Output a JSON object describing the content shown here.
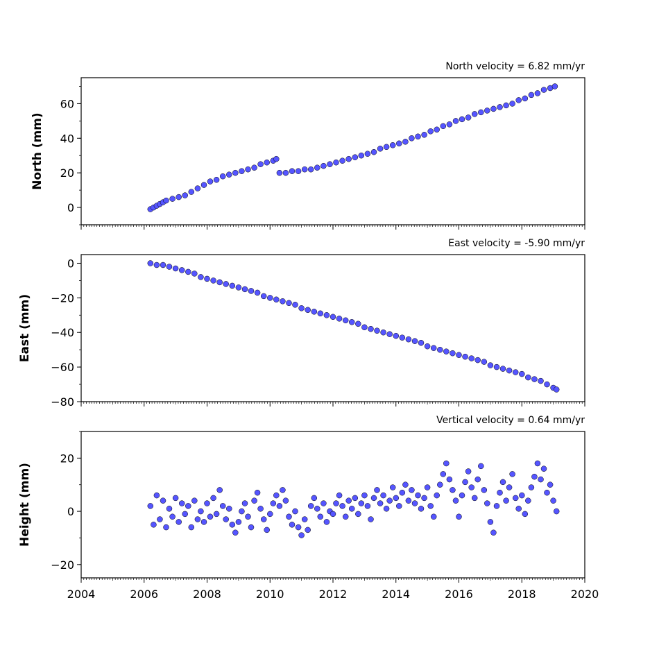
{
  "chart_data": [
    {
      "type": "scatter",
      "panel": "north",
      "title": "North velocity = 6.82 mm/yr",
      "xlabel": "",
      "ylabel": "North (mm)",
      "xlim": [
        2004,
        2020
      ],
      "ylim": [
        -10,
        75
      ],
      "yticks": [
        0,
        20,
        40,
        60
      ],
      "grid": false,
      "marker_color": "#5555ff",
      "marker_edge": "#000000",
      "points": [
        [
          2006.2,
          -1
        ],
        [
          2006.3,
          0
        ],
        [
          2006.4,
          1
        ],
        [
          2006.5,
          2
        ],
        [
          2006.6,
          3
        ],
        [
          2006.7,
          4
        ],
        [
          2006.9,
          5
        ],
        [
          2007.1,
          6
        ],
        [
          2007.3,
          7
        ],
        [
          2007.5,
          9
        ],
        [
          2007.7,
          11
        ],
        [
          2007.9,
          13
        ],
        [
          2008.1,
          15
        ],
        [
          2008.3,
          16
        ],
        [
          2008.5,
          18
        ],
        [
          2008.7,
          19
        ],
        [
          2008.9,
          20
        ],
        [
          2009.1,
          21
        ],
        [
          2009.3,
          22
        ],
        [
          2009.5,
          23
        ],
        [
          2009.7,
          25
        ],
        [
          2009.9,
          26
        ],
        [
          2010.1,
          27
        ],
        [
          2010.2,
          28
        ],
        [
          2010.3,
          20
        ],
        [
          2010.5,
          20
        ],
        [
          2010.7,
          21
        ],
        [
          2010.9,
          21
        ],
        [
          2011.1,
          22
        ],
        [
          2011.3,
          22
        ],
        [
          2011.5,
          23
        ],
        [
          2011.7,
          24
        ],
        [
          2011.9,
          25
        ],
        [
          2012.1,
          26
        ],
        [
          2012.3,
          27
        ],
        [
          2012.5,
          28
        ],
        [
          2012.7,
          29
        ],
        [
          2012.9,
          30
        ],
        [
          2013.1,
          31
        ],
        [
          2013.3,
          32
        ],
        [
          2013.5,
          34
        ],
        [
          2013.7,
          35
        ],
        [
          2013.9,
          36
        ],
        [
          2014.1,
          37
        ],
        [
          2014.3,
          38
        ],
        [
          2014.5,
          40
        ],
        [
          2014.7,
          41
        ],
        [
          2014.9,
          42
        ],
        [
          2015.1,
          44
        ],
        [
          2015.3,
          45
        ],
        [
          2015.5,
          47
        ],
        [
          2015.7,
          48
        ],
        [
          2015.9,
          50
        ],
        [
          2016.1,
          51
        ],
        [
          2016.3,
          52
        ],
        [
          2016.5,
          54
        ],
        [
          2016.7,
          55
        ],
        [
          2016.9,
          56
        ],
        [
          2017.1,
          57
        ],
        [
          2017.3,
          58
        ],
        [
          2017.5,
          59
        ],
        [
          2017.7,
          60
        ],
        [
          2017.9,
          62
        ],
        [
          2018.1,
          63
        ],
        [
          2018.3,
          65
        ],
        [
          2018.5,
          66
        ],
        [
          2018.7,
          68
        ],
        [
          2018.9,
          69
        ],
        [
          2019.05,
          70
        ]
      ]
    },
    {
      "type": "scatter",
      "panel": "east",
      "title": "East velocity = -5.90 mm/yr",
      "xlabel": "",
      "ylabel": "East (mm)",
      "xlim": [
        2004,
        2020
      ],
      "ylim": [
        -80,
        5
      ],
      "yticks": [
        0,
        -20,
        -40,
        -60,
        -80
      ],
      "grid": false,
      "marker_color": "#5555ff",
      "marker_edge": "#000000",
      "points": [
        [
          2006.2,
          0
        ],
        [
          2006.4,
          -1
        ],
        [
          2006.6,
          -1
        ],
        [
          2006.8,
          -2
        ],
        [
          2007.0,
          -3
        ],
        [
          2007.2,
          -4
        ],
        [
          2007.4,
          -5
        ],
        [
          2007.6,
          -6
        ],
        [
          2007.8,
          -8
        ],
        [
          2008.0,
          -9
        ],
        [
          2008.2,
          -10
        ],
        [
          2008.4,
          -11
        ],
        [
          2008.6,
          -12
        ],
        [
          2008.8,
          -13
        ],
        [
          2009.0,
          -14
        ],
        [
          2009.2,
          -15
        ],
        [
          2009.4,
          -16
        ],
        [
          2009.6,
          -17
        ],
        [
          2009.8,
          -19
        ],
        [
          2010.0,
          -20
        ],
        [
          2010.2,
          -21
        ],
        [
          2010.4,
          -22
        ],
        [
          2010.6,
          -23
        ],
        [
          2010.8,
          -24
        ],
        [
          2011.0,
          -26
        ],
        [
          2011.2,
          -27
        ],
        [
          2011.4,
          -28
        ],
        [
          2011.6,
          -29
        ],
        [
          2011.8,
          -30
        ],
        [
          2012.0,
          -31
        ],
        [
          2012.2,
          -32
        ],
        [
          2012.4,
          -33
        ],
        [
          2012.6,
          -34
        ],
        [
          2012.8,
          -35
        ],
        [
          2013.0,
          -37
        ],
        [
          2013.2,
          -38
        ],
        [
          2013.4,
          -39
        ],
        [
          2013.6,
          -40
        ],
        [
          2013.8,
          -41
        ],
        [
          2014.0,
          -42
        ],
        [
          2014.2,
          -43
        ],
        [
          2014.4,
          -44
        ],
        [
          2014.6,
          -45
        ],
        [
          2014.8,
          -46
        ],
        [
          2015.0,
          -48
        ],
        [
          2015.2,
          -49
        ],
        [
          2015.4,
          -50
        ],
        [
          2015.6,
          -51
        ],
        [
          2015.8,
          -52
        ],
        [
          2016.0,
          -53
        ],
        [
          2016.2,
          -54
        ],
        [
          2016.4,
          -55
        ],
        [
          2016.6,
          -56
        ],
        [
          2016.8,
          -57
        ],
        [
          2017.0,
          -59
        ],
        [
          2017.2,
          -60
        ],
        [
          2017.4,
          -61
        ],
        [
          2017.6,
          -62
        ],
        [
          2017.8,
          -63
        ],
        [
          2018.0,
          -64
        ],
        [
          2018.2,
          -66
        ],
        [
          2018.4,
          -67
        ],
        [
          2018.6,
          -68
        ],
        [
          2018.8,
          -70
        ],
        [
          2019.0,
          -72
        ],
        [
          2019.1,
          -73
        ]
      ]
    },
    {
      "type": "scatter",
      "panel": "height",
      "title": "Vertical velocity = 0.64 mm/yr",
      "xlabel": "",
      "ylabel": "Height (mm)",
      "xlim": [
        2004,
        2020
      ],
      "ylim": [
        -25,
        30
      ],
      "yticks": [
        20,
        0,
        -20
      ],
      "xticks": [
        2004,
        2006,
        2008,
        2010,
        2012,
        2014,
        2016,
        2018,
        2020
      ],
      "grid": false,
      "marker_color": "#5555ff",
      "marker_edge": "#000000",
      "points": [
        [
          2006.2,
          2
        ],
        [
          2006.3,
          -5
        ],
        [
          2006.4,
          6
        ],
        [
          2006.5,
          -3
        ],
        [
          2006.6,
          4
        ],
        [
          2006.7,
          -6
        ],
        [
          2006.8,
          1
        ],
        [
          2006.9,
          -2
        ],
        [
          2007.0,
          5
        ],
        [
          2007.1,
          -4
        ],
        [
          2007.2,
          3
        ],
        [
          2007.3,
          -1
        ],
        [
          2007.4,
          2
        ],
        [
          2007.5,
          -6
        ],
        [
          2007.6,
          4
        ],
        [
          2007.7,
          -3
        ],
        [
          2007.8,
          0
        ],
        [
          2007.9,
          -4
        ],
        [
          2008.0,
          3
        ],
        [
          2008.1,
          -2
        ],
        [
          2008.2,
          5
        ],
        [
          2008.3,
          -1
        ],
        [
          2008.4,
          8
        ],
        [
          2008.5,
          2
        ],
        [
          2008.6,
          -3
        ],
        [
          2008.7,
          1
        ],
        [
          2008.8,
          -5
        ],
        [
          2008.9,
          -8
        ],
        [
          2009.0,
          -4
        ],
        [
          2009.1,
          0
        ],
        [
          2009.2,
          3
        ],
        [
          2009.3,
          -2
        ],
        [
          2009.4,
          -6
        ],
        [
          2009.5,
          4
        ],
        [
          2009.6,
          7
        ],
        [
          2009.7,
          1
        ],
        [
          2009.8,
          -3
        ],
        [
          2009.9,
          -7
        ],
        [
          2010.0,
          -1
        ],
        [
          2010.1,
          3
        ],
        [
          2010.2,
          6
        ],
        [
          2010.3,
          2
        ],
        [
          2010.4,
          8
        ],
        [
          2010.5,
          4
        ],
        [
          2010.6,
          -2
        ],
        [
          2010.7,
          -5
        ],
        [
          2010.8,
          0
        ],
        [
          2010.9,
          -6
        ],
        [
          2011.0,
          -9
        ],
        [
          2011.1,
          -3
        ],
        [
          2011.2,
          -7
        ],
        [
          2011.3,
          2
        ],
        [
          2011.4,
          5
        ],
        [
          2011.5,
          1
        ],
        [
          2011.6,
          -2
        ],
        [
          2011.7,
          3
        ],
        [
          2011.8,
          -4
        ],
        [
          2011.9,
          0
        ],
        [
          2012.0,
          -1
        ],
        [
          2012.1,
          3
        ],
        [
          2012.2,
          6
        ],
        [
          2012.3,
          2
        ],
        [
          2012.4,
          -2
        ],
        [
          2012.5,
          4
        ],
        [
          2012.6,
          1
        ],
        [
          2012.7,
          5
        ],
        [
          2012.8,
          -1
        ],
        [
          2012.9,
          3
        ],
        [
          2013.0,
          6
        ],
        [
          2013.1,
          2
        ],
        [
          2013.2,
          -3
        ],
        [
          2013.3,
          5
        ],
        [
          2013.4,
          8
        ],
        [
          2013.5,
          3
        ],
        [
          2013.6,
          6
        ],
        [
          2013.7,
          1
        ],
        [
          2013.8,
          4
        ],
        [
          2013.9,
          9
        ],
        [
          2014.0,
          5
        ],
        [
          2014.1,
          2
        ],
        [
          2014.2,
          7
        ],
        [
          2014.3,
          10
        ],
        [
          2014.4,
          4
        ],
        [
          2014.5,
          8
        ],
        [
          2014.6,
          3
        ],
        [
          2014.7,
          6
        ],
        [
          2014.8,
          1
        ],
        [
          2014.9,
          5
        ],
        [
          2015.0,
          9
        ],
        [
          2015.1,
          2
        ],
        [
          2015.2,
          -2
        ],
        [
          2015.3,
          6
        ],
        [
          2015.4,
          10
        ],
        [
          2015.5,
          14
        ],
        [
          2015.6,
          18
        ],
        [
          2015.7,
          12
        ],
        [
          2015.8,
          8
        ],
        [
          2015.9,
          4
        ],
        [
          2016.0,
          -2
        ],
        [
          2016.1,
          6
        ],
        [
          2016.2,
          11
        ],
        [
          2016.3,
          15
        ],
        [
          2016.4,
          9
        ],
        [
          2016.5,
          5
        ],
        [
          2016.6,
          12
        ],
        [
          2016.7,
          17
        ],
        [
          2016.8,
          8
        ],
        [
          2016.9,
          3
        ],
        [
          2017.0,
          -4
        ],
        [
          2017.1,
          -8
        ],
        [
          2017.2,
          2
        ],
        [
          2017.3,
          7
        ],
        [
          2017.4,
          11
        ],
        [
          2017.5,
          4
        ],
        [
          2017.6,
          9
        ],
        [
          2017.7,
          14
        ],
        [
          2017.8,
          5
        ],
        [
          2017.9,
          1
        ],
        [
          2018.0,
          6
        ],
        [
          2018.1,
          -1
        ],
        [
          2018.2,
          4
        ],
        [
          2018.3,
          9
        ],
        [
          2018.4,
          13
        ],
        [
          2018.5,
          18
        ],
        [
          2018.6,
          12
        ],
        [
          2018.7,
          16
        ],
        [
          2018.8,
          7
        ],
        [
          2018.9,
          10
        ],
        [
          2019.0,
          4
        ],
        [
          2019.1,
          0
        ]
      ]
    }
  ]
}
